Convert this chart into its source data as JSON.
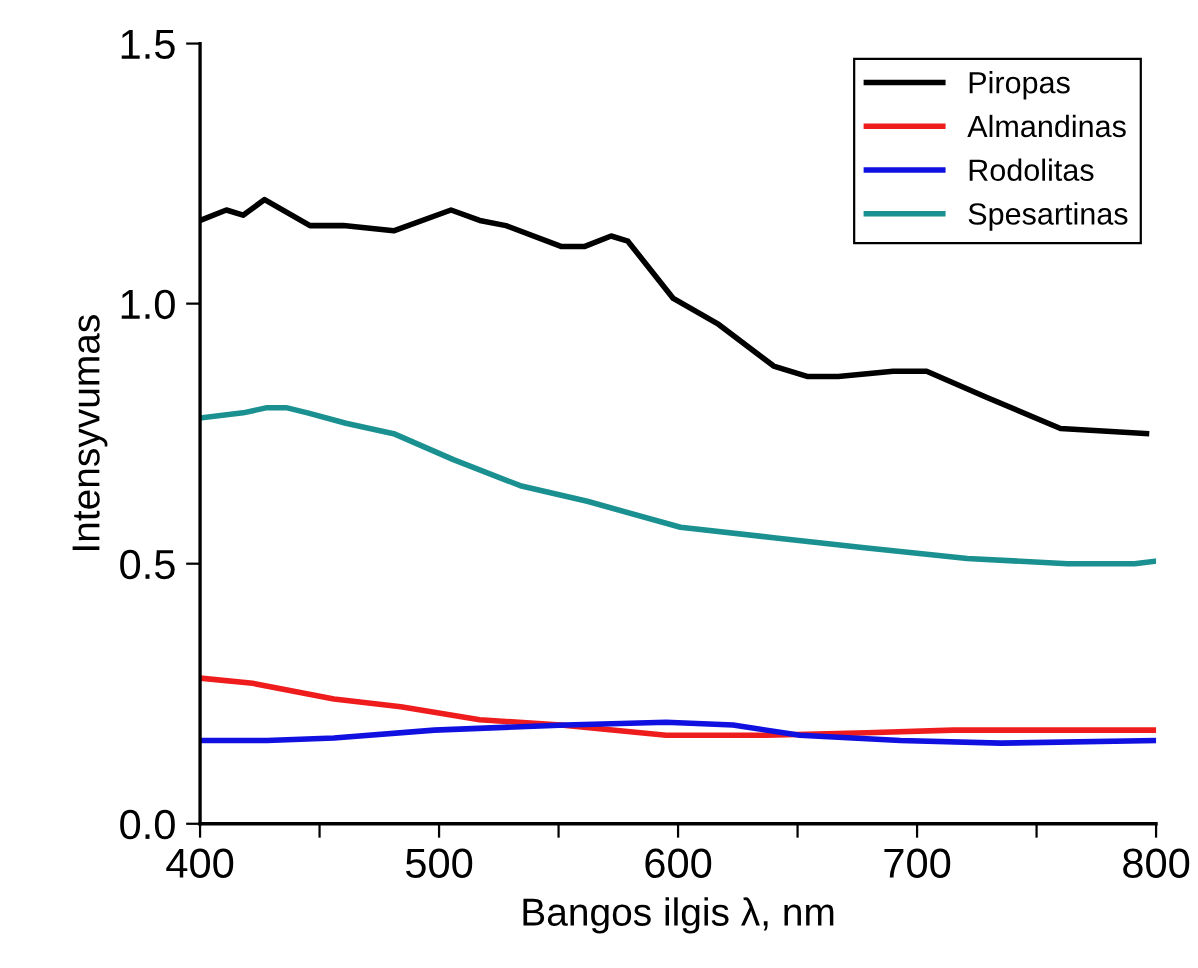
{
  "chart_data": {
    "type": "line",
    "xlabel": "Bangos ilgis λ, nm",
    "ylabel": "Intensyvumas",
    "xlim": [
      400,
      800
    ],
    "ylim": [
      0,
      1.5
    ],
    "xticks": [
      400,
      {
        "value": 450,
        "label": null
      },
      500,
      {
        "value": 550,
        "label": null
      },
      600,
      {
        "value": 650,
        "label": null
      },
      700,
      {
        "value": 750,
        "label": null
      },
      800
    ],
    "yticks": [
      {
        "value": 0,
        "label": "0.0"
      },
      0.5,
      {
        "value": 1,
        "label": "1.0"
      },
      1.5
    ],
    "grid": false,
    "legend": "top right",
    "marker": "none",
    "line_style": "solid",
    "series": [
      {
        "name": "Piropas",
        "color": "#000000",
        "x": [
          400,
          411,
          418,
          427,
          446,
          460,
          481,
          505,
          517,
          528,
          551,
          561,
          572,
          579,
          598,
          617,
          640,
          654,
          667,
          690,
          704,
          729,
          760,
          796
        ],
        "values": [
          1.16,
          1.18,
          1.17,
          1.2,
          1.15,
          1.15,
          1.14,
          1.18,
          1.16,
          1.15,
          1.11,
          1.11,
          1.13,
          1.12,
          1.01,
          0.96,
          0.88,
          0.86,
          0.86,
          0.87,
          0.87,
          0.82,
          0.76,
          0.75
        ]
      },
      {
        "name": "Almandinas",
        "color": "#ee1c1c",
        "x": [
          400,
          422,
          456,
          484,
          517,
          551,
          595,
          637,
          679,
          715,
          763,
          800
        ],
        "values": [
          0.28,
          0.27,
          0.24,
          0.225,
          0.2,
          0.19,
          0.17,
          0.17,
          0.175,
          0.18,
          0.18,
          0.18
        ]
      },
      {
        "name": "Rodolitas",
        "color": "#1010e0",
        "x": [
          400,
          428,
          456,
          498,
          553,
          595,
          623,
          651,
          693,
          735,
          800
        ],
        "values": [
          0.16,
          0.16,
          0.165,
          0.18,
          0.19,
          0.195,
          0.19,
          0.17,
          0.16,
          0.155,
          0.16
        ]
      },
      {
        "name": "Spesartinas",
        "color": "#1a9090",
        "x": [
          400,
          418,
          428,
          436,
          445,
          461,
          481,
          506,
          534,
          562,
          601,
          640,
          679,
          721,
          763,
          791,
          800
        ],
        "values": [
          0.78,
          0.79,
          0.8,
          0.8,
          0.79,
          0.77,
          0.75,
          0.7,
          0.65,
          0.62,
          0.57,
          0.55,
          0.53,
          0.51,
          0.5,
          0.5,
          0.505
        ]
      }
    ]
  }
}
